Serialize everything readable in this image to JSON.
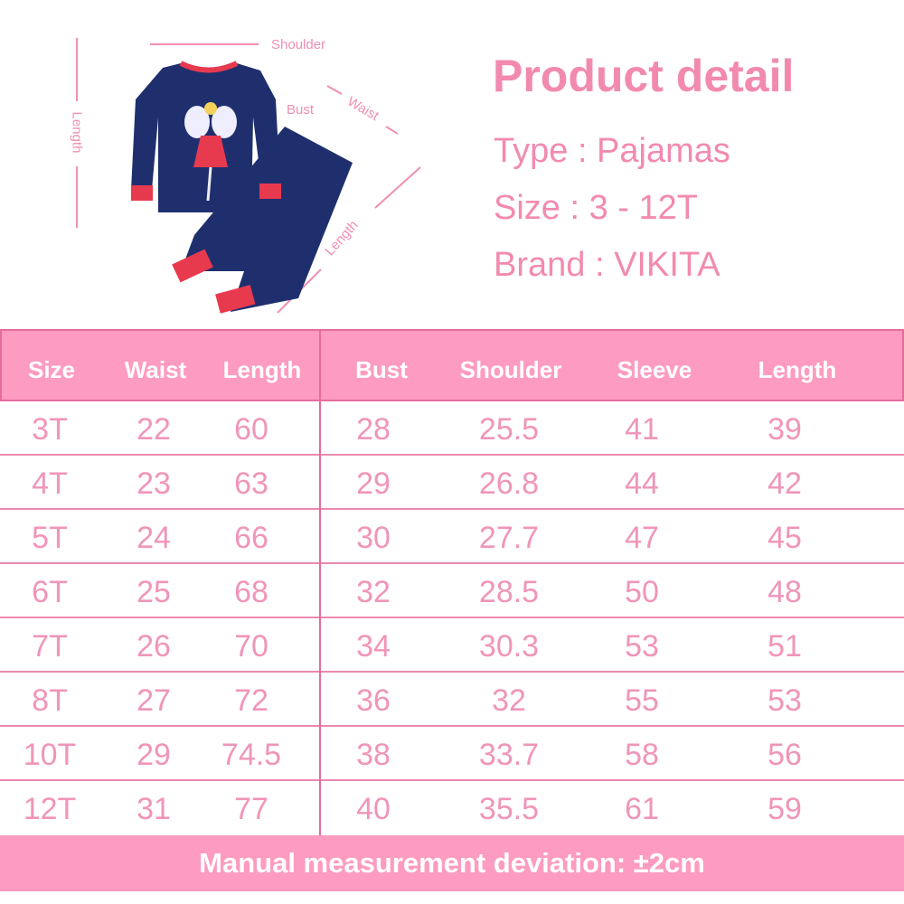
{
  "diagram": {
    "labels": {
      "shoulder": "Shoulder",
      "bust": "Bust",
      "waist": "Waist",
      "top_length": "Length",
      "pants_length": "Length"
    }
  },
  "detail": {
    "title": "Product detail",
    "type": "Type : Pajamas",
    "size": "Size : 3 - 12T",
    "brand": "Brand : VIKITA"
  },
  "table": {
    "headers": [
      "Size",
      "Waist",
      "Length",
      "Bust",
      "Shoulder",
      "Sleeve",
      "Length"
    ],
    "rows": [
      [
        "3T",
        "22",
        "60",
        "28",
        "25.5",
        "41",
        "39"
      ],
      [
        "4T",
        "23",
        "63",
        "29",
        "26.8",
        "44",
        "42"
      ],
      [
        "5T",
        "24",
        "66",
        "30",
        "27.7",
        "47",
        "45"
      ],
      [
        "6T",
        "25",
        "68",
        "32",
        "28.5",
        "50",
        "48"
      ],
      [
        "7T",
        "26",
        "70",
        "34",
        "30.3",
        "53",
        "51"
      ],
      [
        "8T",
        "27",
        "72",
        "36",
        "32",
        "55",
        "53"
      ],
      [
        "10T",
        "29",
        "74.5",
        "38",
        "33.7",
        "58",
        "56"
      ],
      [
        "12T",
        "31",
        "77",
        "40",
        "35.5",
        "61",
        "59"
      ]
    ]
  },
  "footer": "Manual measurement deviation: ±2cm",
  "colors": {
    "header_bg": "#fd9bc1",
    "text_pink": "#f095ba",
    "border": "#e56c9c",
    "garment_navy": "#1f2f6e",
    "cuff_red": "#e83a4f"
  }
}
